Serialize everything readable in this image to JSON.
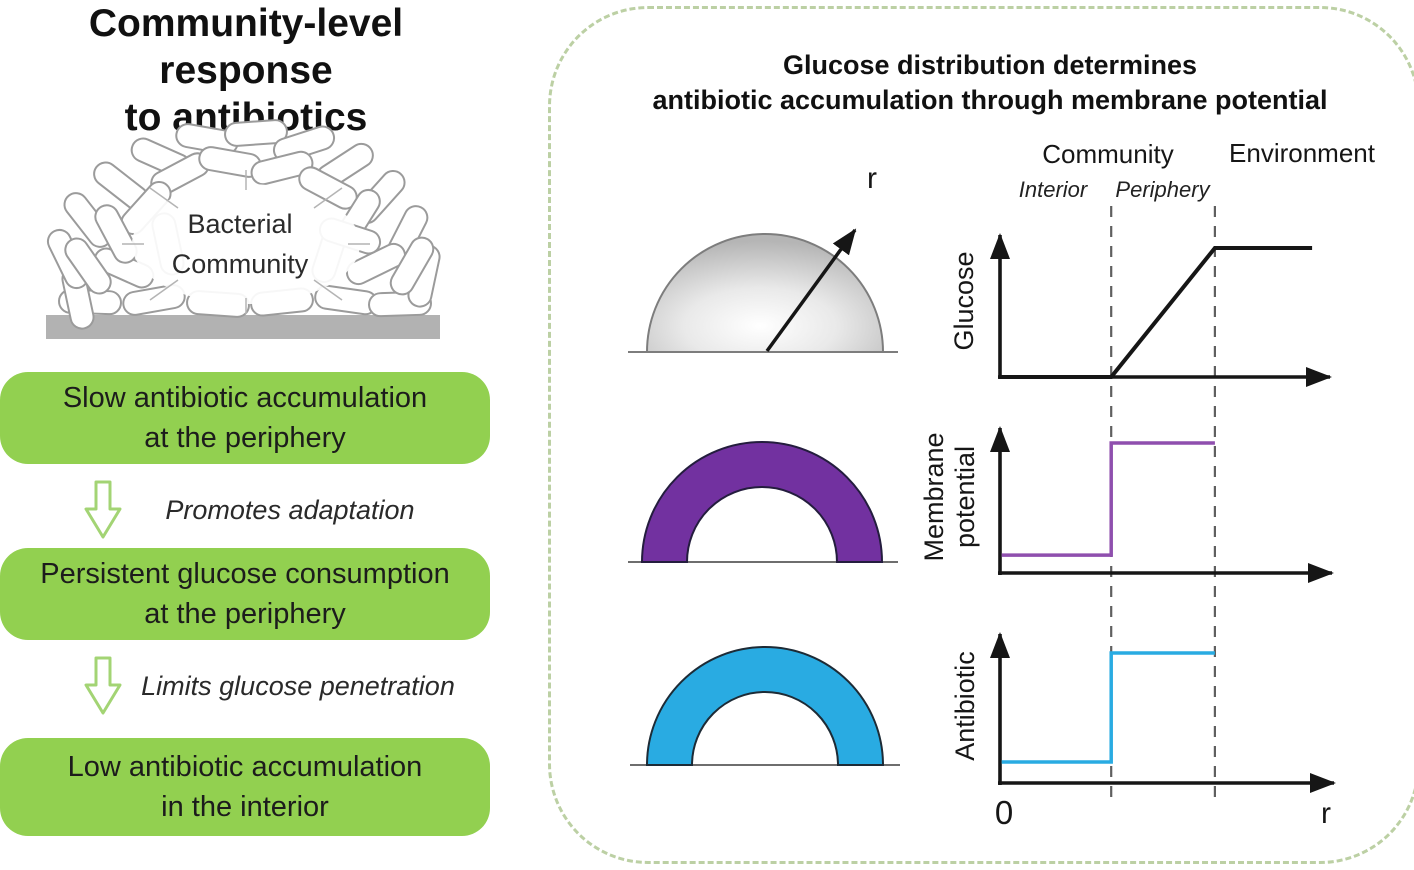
{
  "left": {
    "title": {
      "line1": "Community-level response",
      "line2": "to antibiotics"
    },
    "illustration_label": {
      "line1": "Bacterial",
      "line2": "Community"
    },
    "flow": [
      {
        "type": "box",
        "line1": "Slow antibiotic accumulation",
        "line2": "at the periphery"
      },
      {
        "type": "arrow",
        "label": "Promotes adaptation"
      },
      {
        "type": "box",
        "line1": "Persistent glucose consumption",
        "line2": "at the periphery"
      },
      {
        "type": "arrow",
        "label": "Limits glucose penetration"
      },
      {
        "type": "box",
        "line1": "Low antibiotic accumulation",
        "line2": "in the interior"
      }
    ]
  },
  "panel": {
    "title": {
      "line1": "Glucose distribution determines",
      "line2": "antibiotic accumulation through membrane potential"
    },
    "region_labels": {
      "community": "Community",
      "environment": "Environment",
      "interior": "Interior",
      "periphery": "Periphery"
    },
    "dome_radius_label": "r",
    "x_origin_label": "0",
    "x_end_label": "r",
    "boundaries_norm": [
      0.327,
      0.632
    ]
  },
  "chart_data": [
    {
      "type": "line",
      "id": "glucose",
      "ylabel": "Glucose",
      "xlabel": "r",
      "color": "#161616",
      "points_norm": [
        [
          0,
          0
        ],
        [
          0.327,
          0
        ],
        [
          0.632,
          0.849
        ],
        [
          0.918,
          0.849
        ]
      ],
      "description": "Zero in community interior, linear increase across periphery, constant high level in environment",
      "x_regions": [
        "Interior",
        "Periphery",
        "Environment"
      ],
      "grid": false,
      "legend": false
    },
    {
      "type": "line",
      "id": "membrane-potential",
      "ylabel": "Membrane potential",
      "ylabel_lines": [
        "Membrane",
        "potential"
      ],
      "xlabel": "r",
      "color": "#8f4fae",
      "points_norm": [
        [
          0.005,
          0.118
        ],
        [
          0.327,
          0.118
        ],
        [
          0.327,
          0.855
        ],
        [
          0.632,
          0.855
        ]
      ],
      "description": "Low constant level in interior, step up at interior/periphery boundary, high constant level across periphery",
      "grid": false,
      "legend": false
    },
    {
      "type": "line",
      "id": "antibiotic",
      "ylabel": "Antibiotic",
      "xlabel": "r",
      "color": "#29abe2",
      "points_norm": [
        [
          0.005,
          0.138
        ],
        [
          0.327,
          0.138
        ],
        [
          0.327,
          0.855
        ],
        [
          0.632,
          0.855
        ]
      ],
      "description": "Low constant level in interior, step up at interior/periphery boundary, high constant level across periphery",
      "grid": false,
      "legend": false
    }
  ],
  "colors": {
    "box_green": "#92d050",
    "arrow_outline_green": "#a3d474",
    "panel_border_green": "#bcd0a4",
    "purple_ring": "#7231a0",
    "blue_ring": "#29abe2",
    "axis_black": "#161616",
    "substrate_gray": "#b2b2b2",
    "dome_gray": "#b5b5b5"
  }
}
